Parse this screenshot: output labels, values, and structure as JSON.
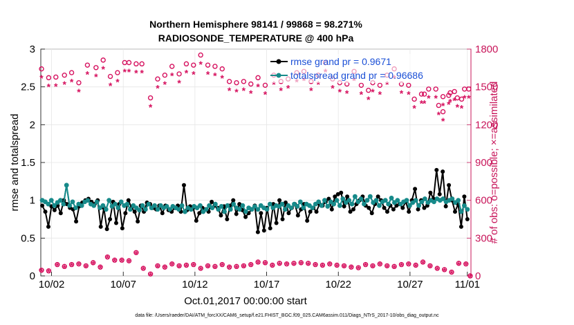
{
  "chart_data": {
    "type": "line",
    "title": "Northern Hemisphere 98141 / 99868 = 98.271%",
    "subtitle": "RADIOSONDE_TEMPERATURE @ 400 hPa",
    "xlabel": "Oct.01,2017 00:00:00 start",
    "ylabel": "rmse and totalspread",
    "y2label": "# of obs: o=possible; ×=assimilated",
    "footer": "data file: /Users/raeder/DAI/ATM_forcXX/CAM6_setup/f.e21.FHIST_BGC.f09_025.CAM6assim.011/Diags_NTrS_2017-10/obs_diag_output.nc",
    "xlim": [
      1.25,
      31.25
    ],
    "ylim": [
      0,
      3
    ],
    "y2lim": [
      0,
      1800
    ],
    "x_ticks": [
      2,
      7,
      12,
      17,
      22,
      27,
      31
    ],
    "x_tick_labels": [
      "10/02",
      "10/07",
      "10/12",
      "10/17",
      "10/22",
      "10/27",
      "11/01"
    ],
    "y_ticks": [
      "0",
      "0.5",
      "1",
      "1.5",
      "2",
      "2.5",
      "3"
    ],
    "y2_ticks": [
      "0",
      "300",
      "600",
      "900",
      "1200",
      "1500",
      "1800"
    ],
    "colors": {
      "rmse": "#000000",
      "spread": "#178a8a",
      "obs": "#d6105e",
      "legend_text": "#1a4fd6",
      "right_axis": "#c8155a"
    },
    "legend": [
      "rmse grand pr = 0.9671",
      "totalspread grand pr = 0.96686"
    ],
    "series": [
      {
        "name": "rmse",
        "values": [
          0.93,
          0.85,
          0.65,
          0.92,
          0.87,
          0.93,
          0.83,
          1.0,
          0.95,
          0.9,
          0.88,
          0.72,
          0.92,
          0.97,
          1.0,
          1.02,
          0.98,
          0.95,
          1.0,
          0.65,
          0.9,
          0.62,
          0.75,
          0.98,
          0.7,
          0.95,
          0.63,
          0.83,
          1.0,
          0.9,
          0.85,
          0.72,
          0.93,
          0.85,
          0.97,
          0.95,
          0.9,
          0.88,
          0.93,
          0.83,
          0.93,
          0.87,
          0.85,
          0.9,
          0.93,
          0.85,
          1.2,
          0.87,
          0.92,
          0.9,
          0.73,
          0.83,
          0.9,
          0.88,
          0.85,
          0.98,
          0.93,
          0.9,
          0.8,
          0.92,
          0.75,
          0.93,
          1.0,
          0.82,
          0.95,
          0.87,
          0.78,
          0.83,
          0.88,
          0.93,
          0.58,
          0.83,
          0.6,
          0.9,
          0.63,
          0.95,
          0.7,
          1.0,
          0.75,
          0.97,
          0.83,
          0.9,
          0.95,
          0.8,
          0.88,
          0.95,
          0.73,
          0.85,
          0.9,
          0.85,
          0.95,
          0.93,
          0.98,
          1.02,
          0.88,
          1.05,
          1.08,
          1.1,
          0.92,
          1.05,
          0.85,
          0.88,
          0.95,
          1.0,
          1.05,
          0.93,
          0.9,
          0.83,
          0.95,
          1.05,
          1.0,
          0.9,
          0.85,
          0.93,
          0.88,
          0.93,
          0.95,
          0.9,
          0.98,
          0.85,
          1.0,
          1.15,
          0.88,
          1.0,
          0.9,
          0.93,
          1.1,
          1.02,
          1.4,
          1.08,
          1.38,
          0.92,
          1.2,
          1.0,
          0.85,
          0.95,
          0.65,
          1.05,
          0.75
        ]
      },
      {
        "name": "totalspread",
        "values": [
          1.0,
          0.98,
          0.95,
          1.0,
          0.93,
          0.97,
          1.0,
          0.95,
          1.2,
          0.93,
          0.98,
          0.9,
          0.95,
          0.93,
          0.98,
          1.0,
          0.95,
          0.93,
          0.98,
          0.9,
          0.93,
          0.88,
          1.0,
          0.92,
          0.95,
          0.9,
          0.98,
          0.93,
          0.95,
          0.88,
          0.93,
          0.9,
          0.87,
          0.93,
          0.88,
          0.95,
          0.9,
          0.93,
          0.88,
          0.93,
          0.9,
          0.92,
          0.88,
          0.92,
          0.9,
          0.88,
          0.93,
          0.85,
          0.9,
          0.88,
          0.92,
          0.9,
          0.93,
          0.85,
          0.88,
          0.93,
          0.9,
          0.95,
          0.88,
          0.92,
          0.85,
          0.93,
          0.88,
          0.95,
          0.9,
          0.88,
          0.93,
          0.85,
          0.9,
          0.88,
          0.92,
          0.88,
          0.93,
          0.9,
          0.88,
          0.95,
          0.9,
          0.93,
          0.92,
          0.95,
          0.88,
          0.93,
          0.9,
          0.95,
          0.92,
          0.98,
          0.9,
          0.95,
          0.93,
          0.9,
          0.95,
          0.98,
          0.93,
          1.0,
          0.92,
          0.98,
          0.95,
          1.0,
          0.93,
          1.02,
          0.97,
          1.0,
          0.95,
          1.05,
          0.98,
          1.02,
          0.95,
          1.0,
          1.05,
          0.97,
          1.0,
          0.93,
          0.98,
          1.0,
          0.95,
          1.03,
          0.97,
          1.0,
          0.95,
          0.98,
          1.0,
          0.93,
          0.97,
          1.0,
          0.93,
          0.98,
          1.02,
          0.97,
          1.0,
          0.98,
          1.02,
          1.0,
          1.02,
          0.98,
          1.0,
          1.02,
          0.97,
          1.0,
          0.85,
          0.93,
          0.88
        ]
      },
      {
        "name": "obs_possible",
        "values": [
          1610,
          1540,
          1545,
          1560,
          1580,
          1500,
          1640,
          1620,
          1680,
          1550,
          1580,
          1660,
          1660,
          1650,
          1650,
          1380,
          1530,
          1560,
          1630,
          1570,
          1650,
          1640,
          1720,
          1640,
          1630,
          1610,
          1510,
          1500,
          1510,
          1490,
          1540,
          1480,
          1560,
          1510,
          1530,
          1580,
          1590,
          1510,
          1560,
          1660,
          1530,
          1500,
          1490,
          1590,
          1480,
          1440,
          1500,
          1480,
          1560,
          1610,
          1490,
          1480,
          1370,
          1410,
          1450,
          1450,
          1390,
          1420,
          1380,
          1450,
          1450,
          1410,
          1320,
          1270,
          1400,
          1430,
          1370
        ],
        "x": [
          1.3,
          1.8,
          2.3,
          2.9,
          3.4,
          3.9,
          4.5,
          5.1,
          5.6,
          6.1,
          6.6,
          7.1,
          7.4,
          7.9,
          8.3,
          8.9,
          9.4,
          9.9,
          10.4,
          10.9,
          11.4,
          11.9,
          12.4,
          12.9,
          13.4,
          13.9,
          14.4,
          14.9,
          15.4,
          15.9,
          16.4,
          16.9,
          17.5,
          18.0,
          18.5,
          19.1,
          19.6,
          20.1,
          20.6,
          21.1,
          21.6,
          22.1,
          22.6,
          23.1,
          23.6,
          24.1,
          24.4,
          24.9,
          25.4,
          25.9,
          26.4,
          26.9,
          27.3,
          27.8,
          28.3,
          28.8,
          29.3,
          29.8,
          30.3,
          30.8,
          31.1,
          28.0,
          29.0,
          29.3,
          29.7,
          30.1,
          30.6
        ]
      },
      {
        "name": "obs_assimilated_lower",
        "x": [
          1.3,
          1.8,
          2.4,
          2.9,
          3.4,
          3.9,
          4.4,
          4.9,
          5.4,
          5.9,
          6.4,
          6.9,
          7.4,
          7.9,
          8.4,
          8.9,
          9.4,
          9.9,
          10.4,
          10.9,
          11.4,
          11.9,
          12.4,
          12.9,
          13.4,
          13.9,
          14.4,
          14.9,
          15.4,
          15.9,
          16.4,
          16.9,
          17.4,
          17.9,
          18.4,
          18.9,
          19.4,
          19.9,
          20.4,
          20.9,
          21.4,
          21.9,
          22.4,
          22.9,
          23.4,
          23.9,
          24.4,
          24.9,
          25.4,
          25.9,
          26.4,
          26.9,
          27.4,
          27.9,
          28.4,
          28.9,
          29.4,
          29.9,
          30.4,
          30.9,
          31.2
        ],
        "values": [
          45,
          40,
          90,
          75,
          90,
          95,
          80,
          105,
          70,
          150,
          125,
          125,
          120,
          185,
          60,
          15,
          80,
          70,
          95,
          80,
          85,
          90,
          60,
          80,
          75,
          90,
          70,
          75,
          80,
          90,
          110,
          105,
          85,
          100,
          95,
          100,
          105,
          100,
          90,
          85,
          95,
          85,
          80,
          70,
          65,
          90,
          80,
          95,
          80,
          75,
          90,
          95,
          85,
          110,
          80,
          60,
          50,
          30,
          100,
          95,
          0
        ]
      }
    ]
  }
}
